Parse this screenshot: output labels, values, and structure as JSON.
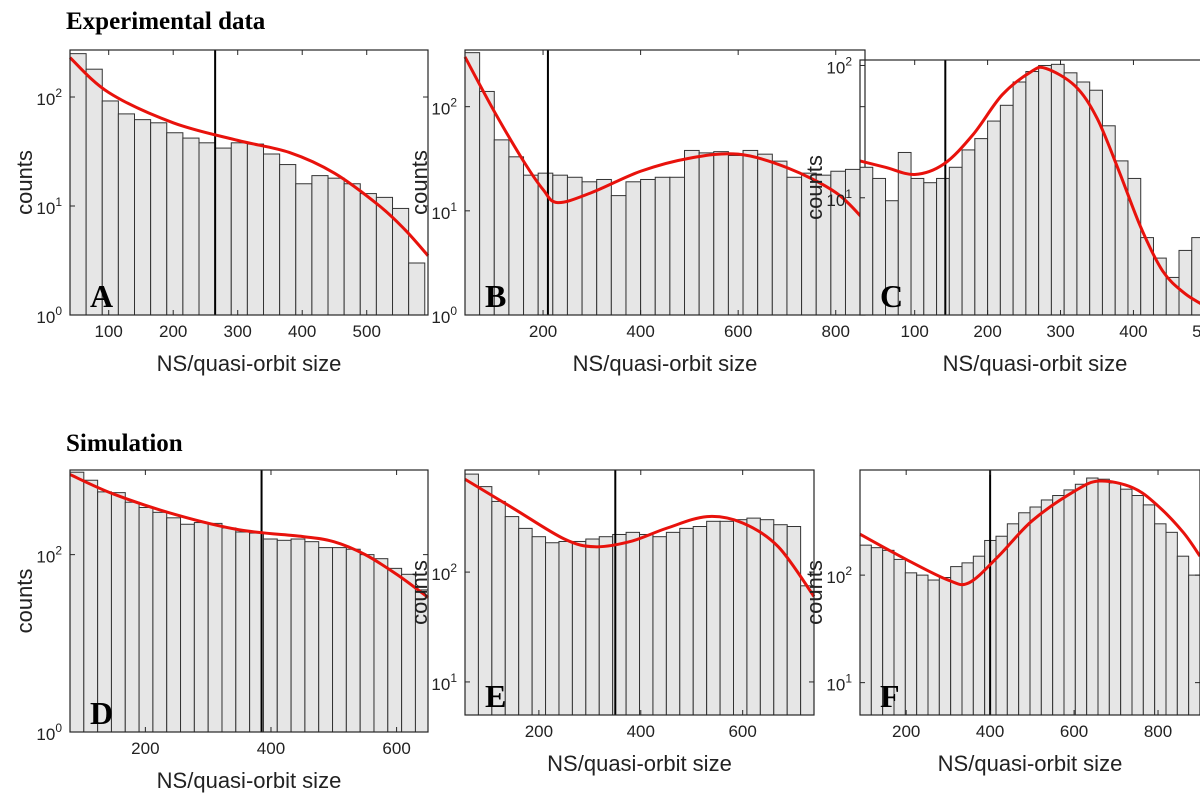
{
  "headings": {
    "experimental": "Experimental data",
    "simulation": "Simulation"
  },
  "colors": {
    "bar_fill": "#e6e6e6",
    "bar_edge": "#333333",
    "fit_line": "#e8120c",
    "marker_line": "#000000"
  },
  "chart_data": [
    {
      "type": "bar",
      "panel": "A",
      "scale": "log",
      "xlabel": "NS/quasi-orbit size",
      "ylabel": "counts",
      "xlim": [
        40,
        595
      ],
      "ylim": [
        1,
        270
      ],
      "xticks": [
        100,
        200,
        300,
        400,
        500
      ],
      "yticks": [
        {
          "v": 1,
          "b": "10",
          "e": "0"
        },
        {
          "v": 10,
          "b": "10",
          "e": "1"
        },
        {
          "v": 100,
          "b": "10",
          "e": "2"
        }
      ],
      "bin_start": 40,
      "bin_width": 25,
      "values": [
        250,
        180,
        92,
        70,
        62,
        58,
        47,
        42,
        38,
        34,
        38,
        37,
        30,
        24,
        16,
        19,
        18,
        16,
        13,
        12,
        9.5,
        3
      ],
      "fit": [
        [
          40,
          230
        ],
        [
          100,
          110
        ],
        [
          200,
          58
        ],
        [
          300,
          40
        ],
        [
          380,
          31
        ],
        [
          450,
          20
        ],
        [
          520,
          10
        ],
        [
          560,
          6
        ],
        [
          595,
          3.5
        ]
      ],
      "marker_x": 265
    },
    {
      "type": "bar",
      "panel": "B",
      "scale": "log",
      "xlabel": "NS/quasi-orbit size",
      "ylabel": "counts",
      "xlim": [
        40,
        860
      ],
      "ylim": [
        1,
        350
      ],
      "xticks": [
        200,
        400,
        600,
        800
      ],
      "yticks": [
        {
          "v": 1,
          "b": "10",
          "e": "0"
        },
        {
          "v": 10,
          "b": "10",
          "e": "1"
        },
        {
          "v": 100,
          "b": "10",
          "e": "2"
        }
      ],
      "bin_start": 40,
      "bin_width": 30,
      "values": [
        330,
        140,
        48,
        33,
        22,
        23,
        22,
        21,
        19,
        20,
        14,
        19,
        20,
        21,
        21,
        38,
        36,
        37,
        34,
        38,
        35,
        30,
        21,
        23,
        22,
        24,
        25,
        11
      ],
      "fit": [
        [
          40,
          300
        ],
        [
          100,
          90
        ],
        [
          160,
          30
        ],
        [
          200,
          16
        ],
        [
          230,
          12
        ],
        [
          300,
          15
        ],
        [
          400,
          24
        ],
        [
          500,
          32
        ],
        [
          600,
          35
        ],
        [
          700,
          26
        ],
        [
          800,
          15
        ],
        [
          860,
          8
        ]
      ],
      "marker_x": 210
    },
    {
      "type": "bar",
      "panel": "C",
      "scale": "log",
      "xlabel": "NS/quasi-orbit size",
      "ylabel": "counts",
      "xlim": [
        25,
        505
      ],
      "ylim": [
        1.3,
        110
      ],
      "xticks": [
        100,
        200,
        300,
        400,
        500
      ],
      "yticks": [
        {
          "v": 10,
          "b": "10",
          "e": "1"
        },
        {
          "v": 100,
          "b": "10",
          "e": "2"
        }
      ],
      "bin_start": 25,
      "bin_width": 17.5,
      "values": [
        17,
        14,
        9.5,
        22,
        14,
        13,
        14,
        17,
        23,
        28,
        38,
        50,
        75,
        90,
        100,
        102,
        88,
        75,
        65,
        35,
        19,
        14,
        5,
        3.5,
        2.5,
        4,
        5
      ],
      "fit": [
        [
          25,
          19
        ],
        [
          60,
          17
        ],
        [
          100,
          15
        ],
        [
          140,
          18
        ],
        [
          180,
          30
        ],
        [
          220,
          60
        ],
        [
          260,
          90
        ],
        [
          280,
          95
        ],
        [
          320,
          70
        ],
        [
          350,
          40
        ],
        [
          380,
          16
        ],
        [
          410,
          6
        ],
        [
          440,
          2.8
        ],
        [
          470,
          1.9
        ],
        [
          500,
          1.5
        ]
      ],
      "marker_x": 142
    },
    {
      "type": "bar",
      "panel": "D",
      "scale": "log",
      "xlabel": "NS/quasi-orbit size",
      "ylabel": "counts",
      "xlim": [
        80,
        650
      ],
      "ylim": [
        1,
        900
      ],
      "xticks": [
        200,
        400,
        600
      ],
      "yticks": [
        {
          "v": 1,
          "b": "10",
          "e": "0"
        },
        {
          "v": 100,
          "b": "10",
          "e": "2"
        }
      ],
      "bin_start": 80,
      "bin_width": 22,
      "values": [
        850,
        690,
        510,
        500,
        390,
        340,
        300,
        260,
        220,
        230,
        225,
        200,
        180,
        175,
        150,
        145,
        150,
        140,
        120,
        120,
        115,
        100,
        90,
        70,
        60,
        40
      ],
      "fit": [
        [
          80,
          800
        ],
        [
          150,
          480
        ],
        [
          250,
          280
        ],
        [
          350,
          190
        ],
        [
          450,
          160
        ],
        [
          500,
          140
        ],
        [
          550,
          100
        ],
        [
          600,
          60
        ],
        [
          650,
          33
        ]
      ],
      "marker_x": 385
    },
    {
      "type": "bar",
      "panel": "E",
      "scale": "log",
      "xlabel": "NS/quasi-orbit size",
      "ylabel": "counts",
      "xlim": [
        55,
        740
      ],
      "ylim": [
        5,
        850
      ],
      "xticks": [
        200,
        400,
        600
      ],
      "yticks": [
        {
          "v": 10,
          "b": "10",
          "e": "1"
        },
        {
          "v": 100,
          "b": "10",
          "e": "2"
        }
      ],
      "bin_start": 55,
      "bin_width": 26.35,
      "values": [
        780,
        600,
        440,
        320,
        250,
        210,
        185,
        190,
        190,
        200,
        210,
        220,
        230,
        220,
        210,
        230,
        250,
        260,
        290,
        290,
        300,
        310,
        300,
        270,
        260,
        75
      ],
      "fit": [
        [
          55,
          700
        ],
        [
          150,
          380
        ],
        [
          250,
          200
        ],
        [
          310,
          170
        ],
        [
          380,
          190
        ],
        [
          450,
          250
        ],
        [
          530,
          320
        ],
        [
          600,
          280
        ],
        [
          670,
          170
        ],
        [
          740,
          60
        ]
      ],
      "marker_x": 350
    },
    {
      "type": "bar",
      "panel": "F",
      "scale": "log",
      "xlabel": "NS/quasi-orbit size",
      "ylabel": "counts",
      "xlim": [
        90,
        900
      ],
      "ylim": [
        5,
        950
      ],
      "xticks": [
        200,
        400,
        600,
        800
      ],
      "yticks": [
        {
          "v": 10,
          "b": "10",
          "e": "1"
        },
        {
          "v": 100,
          "b": "10",
          "e": "2"
        }
      ],
      "bin_start": 90,
      "bin_width": 27,
      "values": [
        190,
        180,
        170,
        140,
        105,
        100,
        90,
        95,
        120,
        130,
        150,
        210,
        230,
        300,
        380,
        430,
        500,
        550,
        620,
        700,
        800,
        780,
        720,
        630,
        550,
        450,
        300,
        250,
        150,
        100
      ],
      "fit": [
        [
          90,
          240
        ],
        [
          200,
          140
        ],
        [
          300,
          90
        ],
        [
          350,
          85
        ],
        [
          420,
          150
        ],
        [
          500,
          320
        ],
        [
          600,
          600
        ],
        [
          660,
          750
        ],
        [
          740,
          650
        ],
        [
          800,
          440
        ],
        [
          860,
          250
        ],
        [
          900,
          150
        ]
      ],
      "marker_x": 400
    }
  ]
}
